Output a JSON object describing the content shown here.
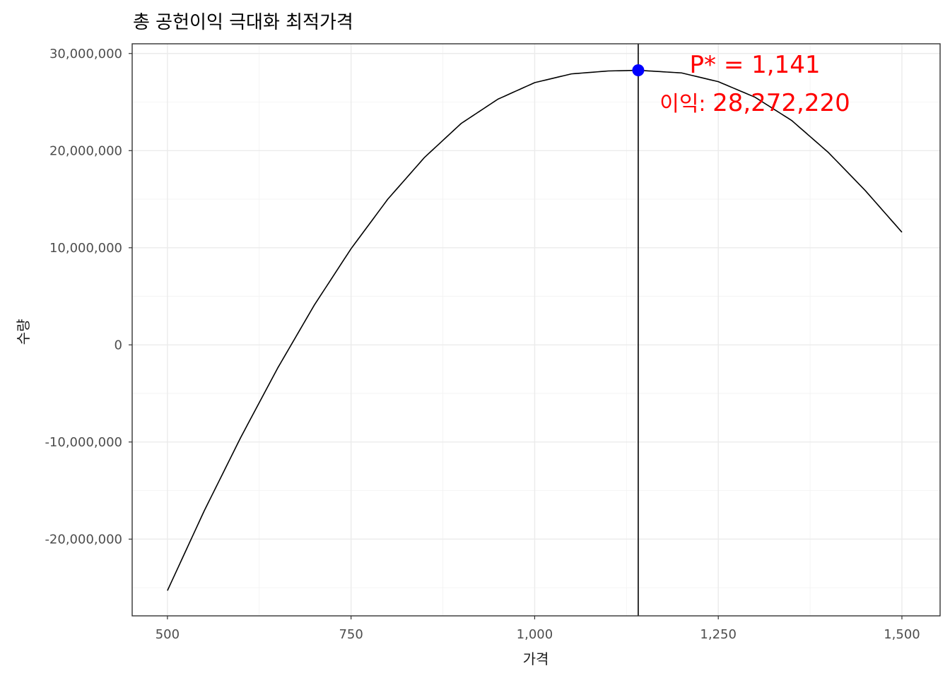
{
  "chart_data": {
    "type": "line",
    "title": "총 공헌이익 극대화 최적가격",
    "xlabel": "가격",
    "ylabel": "수량",
    "xlim": [
      452,
      1552
    ],
    "ylim": [
      -27900000,
      31000000
    ],
    "x_ticks": [
      500,
      750,
      1000,
      1250,
      1500
    ],
    "x_tick_labels": [
      "500",
      "750",
      "1,000",
      "1,250",
      "1,500"
    ],
    "y_ticks": [
      -20000000,
      -10000000,
      0,
      10000000,
      20000000,
      30000000
    ],
    "y_tick_labels": [
      "-20,000,000",
      "-10,000,000",
      "0",
      "10,000,000",
      "20,000,000",
      "30,000,000"
    ],
    "grid": true,
    "series": [
      {
        "x": [
          500,
          550,
          600,
          650,
          700,
          750,
          800,
          850,
          900,
          950,
          1000,
          1050,
          1100,
          1141,
          1200,
          1250,
          1300,
          1350,
          1400,
          1450,
          1500
        ],
        "y": [
          -25300000,
          -17100000,
          -9500000,
          -2400000,
          4100000,
          9900000,
          15000000,
          19300000,
          22800000,
          25300000,
          27000000,
          27900000,
          28200000,
          28272220,
          28000000,
          27100000,
          25500000,
          23100000,
          19800000,
          15900000,
          11600000
        ],
        "color": "#000000"
      }
    ],
    "optimum": {
      "x": 1141,
      "y": 28272220,
      "color": "#0000ff"
    },
    "vline_x": 1141,
    "annotations": {
      "price_text": "P* = 1,141",
      "profit_prefix": "이익: ",
      "profit_value": "28,272,220",
      "color": "#ff0000"
    }
  }
}
